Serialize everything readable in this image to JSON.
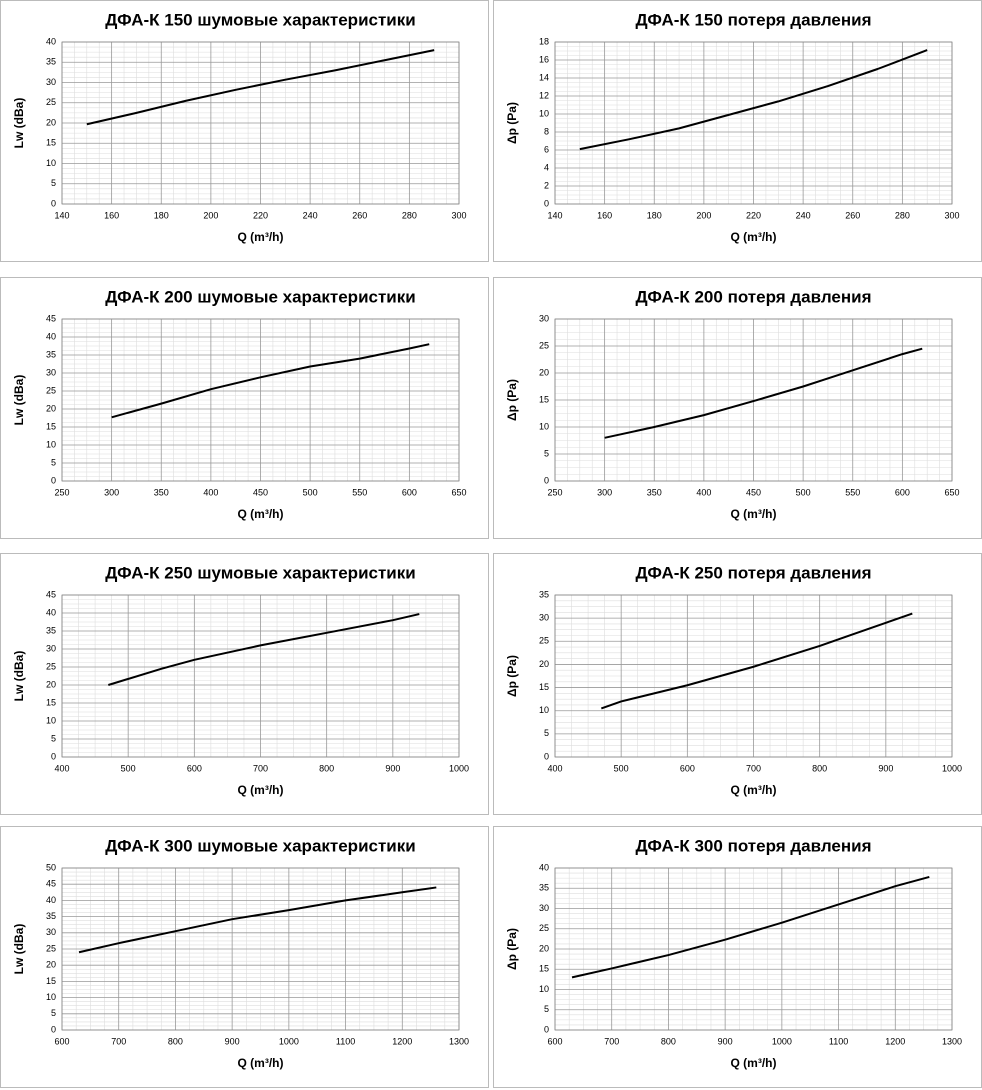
{
  "chart_data": [
    {
      "type": "line",
      "title": "ДФА-К 150 шумовые характеристики",
      "x_label": "Q (m³/h)",
      "y_label": "Lw (dBa)",
      "x": [
        150,
        170,
        190,
        210,
        230,
        250,
        270,
        290
      ],
      "values": [
        19.7,
        22.5,
        25.5,
        28.2,
        30.7,
        33,
        35.5,
        38
      ],
      "color": "#000000",
      "xlim": [
        140,
        300
      ],
      "xticks": [
        140,
        160,
        180,
        200,
        220,
        240,
        260,
        280,
        300
      ],
      "ylim": [
        0,
        40
      ],
      "yticks": [
        0,
        5,
        10,
        15,
        20,
        25,
        30,
        35,
        40
      ],
      "grid": true,
      "minor_grid": true
    },
    {
      "type": "line",
      "title": "ДФА-К 150 потеря давления",
      "x_label": "Q (m³/h)",
      "y_label": "Δp (Pa)",
      "x": [
        150,
        170,
        190,
        210,
        230,
        250,
        270,
        290
      ],
      "values": [
        6.1,
        7.2,
        8.4,
        9.9,
        11.4,
        13.1,
        15,
        17.1
      ],
      "color": "#000000",
      "xlim": [
        140,
        300
      ],
      "xticks": [
        140,
        160,
        180,
        200,
        220,
        240,
        260,
        280,
        300
      ],
      "ylim": [
        0,
        18
      ],
      "yticks": [
        0,
        2,
        4,
        6,
        8,
        10,
        12,
        14,
        16,
        18
      ],
      "grid": true,
      "minor_grid": true
    },
    {
      "type": "line",
      "title": "ДФА-К 200 шумовые характеристики",
      "x_label": "Q (m³/h)",
      "y_label": "Lw (dBa)",
      "x": [
        300,
        350,
        400,
        450,
        500,
        550,
        600,
        620
      ],
      "values": [
        17.7,
        21.5,
        25.5,
        28.8,
        31.8,
        34,
        36.8,
        38
      ],
      "color": "#000000",
      "xlim": [
        250,
        650
      ],
      "xticks": [
        250,
        300,
        350,
        400,
        450,
        500,
        550,
        600,
        650
      ],
      "ylim": [
        0,
        45
      ],
      "yticks": [
        0,
        5,
        10,
        15,
        20,
        25,
        30,
        35,
        40,
        45
      ],
      "grid": true,
      "minor_grid": true
    },
    {
      "type": "line",
      "title": "ДФА-К 200 потеря давления",
      "x_label": "Q (m³/h)",
      "y_label": "Δp (Pa)",
      "x": [
        300,
        350,
        400,
        450,
        500,
        550,
        600,
        620
      ],
      "values": [
        8,
        10,
        12.2,
        14.8,
        17.5,
        20.5,
        23.5,
        24.5
      ],
      "color": "#000000",
      "xlim": [
        250,
        650
      ],
      "xticks": [
        250,
        300,
        350,
        400,
        450,
        500,
        550,
        600,
        650
      ],
      "ylim": [
        0,
        30
      ],
      "yticks": [
        0,
        5,
        10,
        15,
        20,
        25,
        30
      ],
      "grid": true,
      "minor_grid": true
    },
    {
      "type": "line",
      "title": "ДФА-К 250 шумовые характеристики",
      "x_label": "Q (m³/h)",
      "y_label": "Lw (dBa)",
      "x": [
        470,
        550,
        600,
        700,
        800,
        900,
        940
      ],
      "values": [
        20,
        24.5,
        27,
        31,
        34.5,
        38,
        39.7
      ],
      "color": "#000000",
      "xlim": [
        400,
        1000
      ],
      "xticks": [
        400,
        500,
        600,
        700,
        800,
        900,
        1000
      ],
      "ylim": [
        0,
        45
      ],
      "yticks": [
        0,
        5,
        10,
        15,
        20,
        25,
        30,
        35,
        40,
        45
      ],
      "grid": true,
      "minor_grid": true
    },
    {
      "type": "line",
      "title": "ДФА-К 250 потеря давления",
      "x_label": "Q (m³/h)",
      "y_label": "Δp (Pa)",
      "x": [
        470,
        500,
        600,
        700,
        800,
        900,
        940
      ],
      "values": [
        10.5,
        12,
        15.5,
        19.5,
        24,
        29,
        31
      ],
      "color": "#000000",
      "xlim": [
        400,
        1000
      ],
      "xticks": [
        400,
        500,
        600,
        700,
        800,
        900,
        1000
      ],
      "ylim": [
        0,
        35
      ],
      "yticks": [
        0,
        5,
        10,
        15,
        20,
        25,
        30,
        35
      ],
      "grid": true,
      "minor_grid": true
    },
    {
      "type": "line",
      "title": "ДФА-К 300 шумовые характеристики",
      "x_label": "Q (m³/h)",
      "y_label": "Lw (dBa)",
      "x": [
        630,
        700,
        800,
        900,
        1000,
        1100,
        1200,
        1260
      ],
      "values": [
        24,
        26.8,
        30.5,
        34.2,
        37,
        40,
        42.5,
        44
      ],
      "color": "#000000",
      "xlim": [
        600,
        1300
      ],
      "xticks": [
        600,
        700,
        800,
        900,
        1000,
        1100,
        1200,
        1300
      ],
      "ylim": [
        0,
        50
      ],
      "yticks": [
        0,
        5,
        10,
        15,
        20,
        25,
        30,
        35,
        40,
        45,
        50
      ],
      "grid": true,
      "minor_grid": true
    },
    {
      "type": "line",
      "title": "ДФА-К 300 потеря давления",
      "x_label": "Q (m³/h)",
      "y_label": "Δp (Pa)",
      "x": [
        630,
        700,
        800,
        900,
        1000,
        1100,
        1200,
        1260
      ],
      "values": [
        13,
        15.2,
        18.5,
        22.3,
        26.5,
        31,
        35.5,
        37.8
      ],
      "color": "#000000",
      "xlim": [
        600,
        1300
      ],
      "xticks": [
        600,
        700,
        800,
        900,
        1000,
        1100,
        1200,
        1300
      ],
      "ylim": [
        0,
        40
      ],
      "yticks": [
        0,
        5,
        10,
        15,
        20,
        25,
        30,
        35,
        40
      ],
      "grid": true,
      "minor_grid": true
    }
  ]
}
